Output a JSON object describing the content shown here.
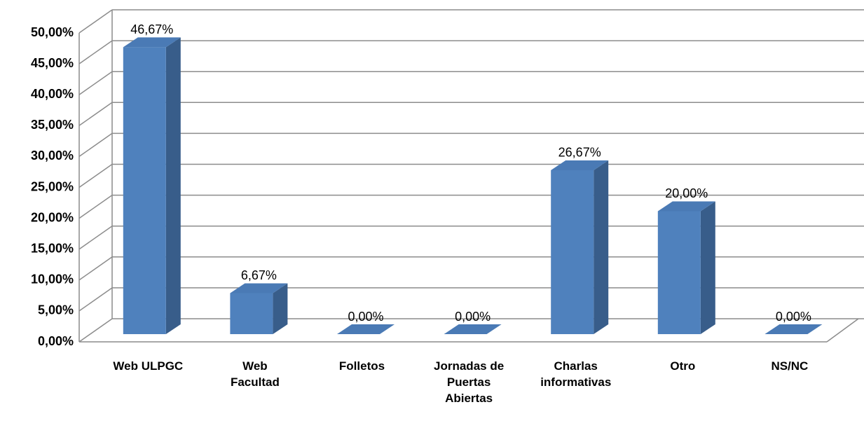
{
  "chart_data": {
    "type": "bar3d",
    "categories": [
      "Web ULPGC",
      "Web Facultad",
      "Folletos",
      "Jornadas de Puertas Abiertas",
      "Charlas informativas",
      "Otro",
      "NS/NC"
    ],
    "values": [
      46.67,
      6.67,
      0,
      0,
      26.67,
      20,
      0
    ],
    "value_labels": [
      "46,67%",
      "6,67%",
      "0,00%",
      "0,00%",
      "26,67%",
      "20,00%",
      "0,00%"
    ],
    "color": "#4f81bd",
    "ylim": [
      0,
      50
    ],
    "yticks": [
      {
        "value": 0,
        "label": "0,00%"
      },
      {
        "value": 5,
        "label": "5,00%"
      },
      {
        "value": 10,
        "label": "10,00%"
      },
      {
        "value": 15,
        "label": "15,00%"
      },
      {
        "value": 20,
        "label": "20,00%"
      },
      {
        "value": 25,
        "label": "25,00%"
      },
      {
        "value": 30,
        "label": "30,00%"
      },
      {
        "value": 35,
        "label": "35,00%"
      },
      {
        "value": 40,
        "label": "40,00%"
      },
      {
        "value": 45,
        "label": "45,00%"
      },
      {
        "value": 50,
        "label": "50,00%"
      }
    ],
    "grid": true
  }
}
